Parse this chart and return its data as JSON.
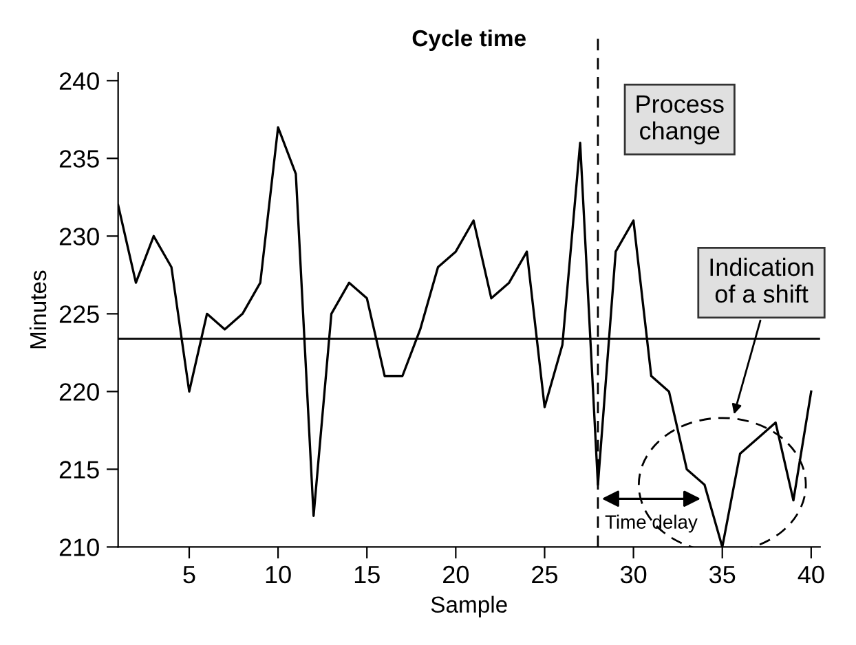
{
  "chart_data": {
    "type": "line",
    "title": "Cycle time",
    "xlabel": "Sample",
    "ylabel": "Minutes",
    "x": [
      1,
      2,
      3,
      4,
      5,
      6,
      7,
      8,
      9,
      10,
      11,
      12,
      13,
      14,
      15,
      16,
      17,
      18,
      19,
      20,
      21,
      22,
      23,
      24,
      25,
      26,
      27,
      28,
      29,
      30,
      31,
      32,
      33,
      34,
      35,
      36,
      37,
      38,
      39,
      40
    ],
    "series": [
      {
        "color": "#000000",
        "values": [
          232,
          227,
          230,
          228,
          220,
          225,
          224,
          225,
          227,
          237,
          234,
          212,
          225,
          227,
          226,
          221,
          221,
          224,
          228,
          229,
          231,
          226,
          227,
          229,
          219,
          223,
          236,
          214,
          229,
          231,
          221,
          220,
          215,
          214,
          210,
          216,
          217,
          218,
          213,
          220
        ]
      }
    ],
    "xlim": [
      1,
      40.5
    ],
    "ylim": [
      210,
      240.5
    ],
    "xticks": [
      5,
      10,
      15,
      20,
      25,
      30,
      35,
      40
    ],
    "yticks": [
      210,
      215,
      220,
      225,
      230,
      235,
      240
    ],
    "grid": false,
    "legend": false,
    "marker": "none",
    "line_style": "solid",
    "ref_lines": [
      {
        "axis": "y",
        "value": 223.4,
        "color": "#000000",
        "line_style": "solid"
      },
      {
        "axis": "x",
        "value": 28,
        "color": "#000000",
        "line_style": "dashed"
      }
    ],
    "annotations": [
      "Process change",
      "Indication of a shift",
      "Time delay"
    ]
  }
}
